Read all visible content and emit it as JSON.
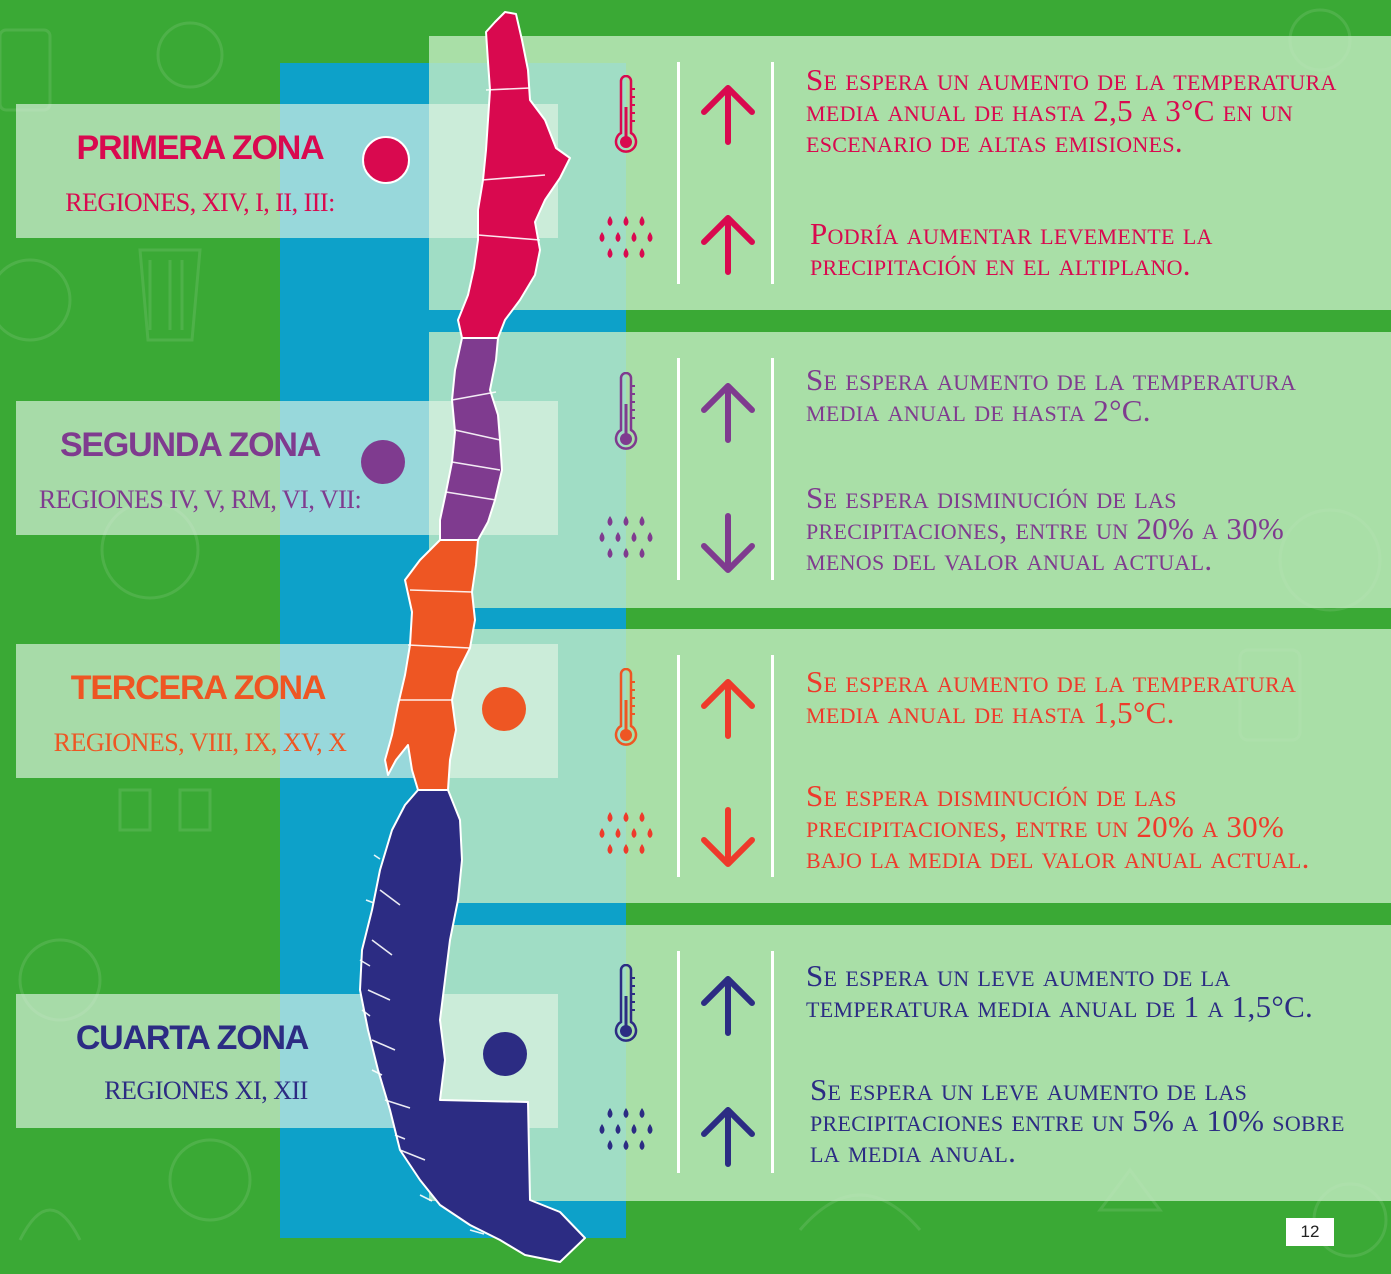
{
  "colors": {
    "background": "#3aa935",
    "strip": "#0da1c9",
    "zone1": "#d9094f",
    "zone2": "#7f3b8f",
    "zone3": "#ee5623",
    "zone4": "#2c2c83"
  },
  "zones": [
    {
      "title": "PRIMERA ZONA",
      "regions": "REGIONES, XIV, I, II, III:",
      "temperature": {
        "icon": "thermometer-icon",
        "trend": "arrow-up-icon",
        "text": [
          "Se espera un aumento de la temperatura",
          "media anual de hasta 2,5 a 3°C en un",
          "escenario de altas emisiones."
        ]
      },
      "precipitation": {
        "icon": "raindrops-icon",
        "trend": "arrow-up-icon",
        "text": [
          "Podría aumentar levemente la",
          "precipitación en el altiplano."
        ]
      }
    },
    {
      "title": "SEGUNDA ZONA",
      "regions": "REGIONES IV, V, RM, VI, VII:",
      "temperature": {
        "icon": "thermometer-icon",
        "trend": "arrow-up-icon",
        "text": [
          "Se espera aumento de la temperatura",
          "media anual de hasta 2°C."
        ]
      },
      "precipitation": {
        "icon": "raindrops-icon",
        "trend": "arrow-down-icon",
        "text": [
          "Se espera disminución de las",
          "precipitaciones, entre un 20% a 30%",
          "menos del valor anual actual."
        ]
      }
    },
    {
      "title": "TERCERA ZONA",
      "regions": "REGIONES, VIII, IX, XV, X",
      "temperature": {
        "icon": "thermometer-icon",
        "trend": "arrow-up-icon",
        "text": [
          "Se espera aumento de la temperatura",
          "media anual de hasta 1,5°C."
        ]
      },
      "precipitation": {
        "icon": "raindrops-icon",
        "trend": "arrow-down-icon",
        "text": [
          "Se espera disminución de las",
          "precipitaciones, entre un 20% a 30%",
          "bajo la media del valor anual actual."
        ]
      }
    },
    {
      "title": "CUARTA ZONA",
      "regions": "REGIONES XI, XII",
      "temperature": {
        "icon": "thermometer-icon",
        "trend": "arrow-up-icon",
        "text": [
          "Se espera un leve aumento de la",
          "temperatura media anual de 1 a 1,5°C."
        ]
      },
      "precipitation": {
        "icon": "raindrops-icon",
        "trend": "arrow-up-icon",
        "text": [
          "Se espera un leve aumento de las",
          "precipitaciones entre un 5% a 10% sobre",
          "la media anual."
        ]
      }
    }
  ],
  "page_number": "12"
}
